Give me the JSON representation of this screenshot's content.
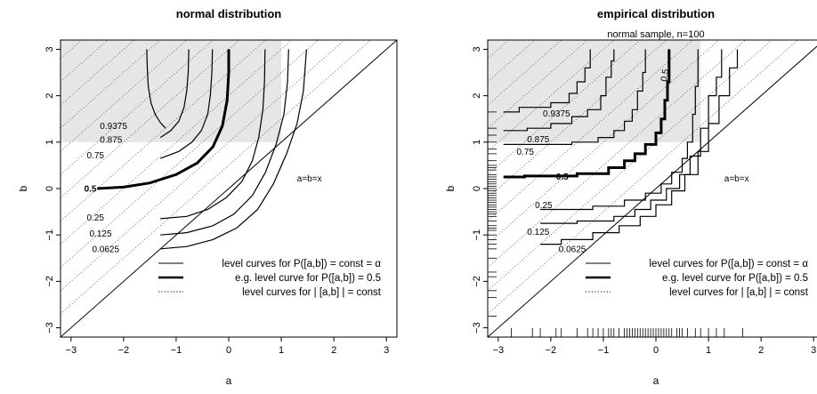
{
  "chart_data": [
    {
      "type": "line",
      "title": "normal distribution",
      "subtitle": "",
      "xlabel": "a",
      "ylabel": "b",
      "xlim": [
        -3.2,
        3.2
      ],
      "ylim": [
        -3.2,
        3.2
      ],
      "xticks": [
        -3,
        -2,
        -1,
        0,
        1,
        2,
        3
      ],
      "yticks": [
        -3,
        -2,
        -1,
        0,
        1,
        2,
        3
      ],
      "shaded_region": {
        "a": [
          -3.2,
          1
        ],
        "b": [
          1,
          3.2
        ]
      },
      "diagonal_label": "a=b=x",
      "level_curves": [
        {
          "label": "0.9375",
          "points": [
            [
              -1.2,
              1.3
            ],
            [
              -1.3,
              1.42
            ],
            [
              -1.4,
              1.6
            ],
            [
              -1.48,
              1.85
            ],
            [
              -1.53,
              2.2
            ],
            [
              -1.55,
              2.6
            ],
            [
              -1.56,
              3.0
            ]
          ]
        },
        {
          "label": "0.875",
          "points": [
            [
              -1.3,
              1.1
            ],
            [
              -1.1,
              1.25
            ],
            [
              -0.95,
              1.45
            ],
            [
              -0.85,
              1.75
            ],
            [
              -0.8,
              2.1
            ],
            [
              -0.77,
              2.5
            ],
            [
              -0.76,
              3.0
            ]
          ]
        },
        {
          "label": "0.75",
          "points": [
            [
              -1.3,
              0.65
            ],
            [
              -0.95,
              0.8
            ],
            [
              -0.7,
              1.0
            ],
            [
              -0.52,
              1.25
            ],
            [
              -0.4,
              1.6
            ],
            [
              -0.35,
              2.0
            ],
            [
              -0.32,
              2.5
            ],
            [
              -0.31,
              3.0
            ]
          ]
        },
        {
          "label": "0.5",
          "bold": true,
          "points": [
            [
              -2.5,
              0.0
            ],
            [
              -2.0,
              0.03
            ],
            [
              -1.5,
              0.12
            ],
            [
              -1.0,
              0.3
            ],
            [
              -0.6,
              0.55
            ],
            [
              -0.3,
              0.9
            ],
            [
              -0.12,
              1.35
            ],
            [
              -0.03,
              1.9
            ],
            [
              0.0,
              2.5
            ],
            [
              0.0,
              3.0
            ]
          ]
        },
        {
          "label": "0.25",
          "points": [
            [
              -1.3,
              -0.65
            ],
            [
              -0.8,
              -0.6
            ],
            [
              -0.4,
              -0.45
            ],
            [
              -0.05,
              -0.2
            ],
            [
              0.25,
              0.15
            ],
            [
              0.45,
              0.6
            ],
            [
              0.57,
              1.1
            ],
            [
              0.65,
              1.7
            ],
            [
              0.68,
              2.3
            ],
            [
              0.69,
              3.0
            ]
          ]
        },
        {
          "label": "0.125",
          "points": [
            [
              -1.3,
              -1.0
            ],
            [
              -0.8,
              -0.95
            ],
            [
              -0.3,
              -0.8
            ],
            [
              0.1,
              -0.55
            ],
            [
              0.45,
              -0.15
            ],
            [
              0.7,
              0.35
            ],
            [
              0.9,
              0.95
            ],
            [
              1.05,
              1.6
            ],
            [
              1.12,
              2.3
            ],
            [
              1.14,
              3.0
            ]
          ]
        },
        {
          "label": "0.0625",
          "points": [
            [
              -1.3,
              -1.3
            ],
            [
              -0.8,
              -1.25
            ],
            [
              -0.3,
              -1.1
            ],
            [
              0.15,
              -0.85
            ],
            [
              0.55,
              -0.45
            ],
            [
              0.85,
              0.1
            ],
            [
              1.1,
              0.75
            ],
            [
              1.3,
              1.4
            ],
            [
              1.42,
              2.1
            ],
            [
              1.48,
              3.0
            ]
          ]
        }
      ],
      "legend": {
        "placement": "bottom-right",
        "entries": [
          {
            "label": "level curves for P([a,b]) = const = α",
            "style": "thin"
          },
          {
            "label": "e.g. level curve for P([a,b]) = 0.5",
            "style": "bold"
          },
          {
            "label": "level curves for | [a,b] | = const",
            "style": "dotted"
          }
        ]
      }
    },
    {
      "type": "line",
      "title": "empirical distribution",
      "subtitle": "normal sample, n=100",
      "xlabel": "a",
      "ylabel": "b",
      "xlim": [
        -3.2,
        3.2
      ],
      "ylim": [
        -3.2,
        3.2
      ],
      "xticks": [
        -3,
        -2,
        -1,
        0,
        1,
        2,
        3
      ],
      "yticks": [
        -3,
        -2,
        -1,
        0,
        1,
        2,
        3
      ],
      "shaded_region": {
        "a": [
          -3.2,
          0.85
        ],
        "b": [
          1,
          3.2
        ]
      },
      "diagonal_label": "a=b=x",
      "rug_x": [
        -2.75,
        -2.35,
        -2.2,
        -1.9,
        -1.8,
        -1.5,
        -1.3,
        -1.2,
        -1.1,
        -1.0,
        -0.9,
        -0.85,
        -0.8,
        -0.7,
        -0.6,
        -0.55,
        -0.5,
        -0.45,
        -0.4,
        -0.35,
        -0.3,
        -0.25,
        -0.2,
        -0.15,
        -0.1,
        -0.05,
        0.0,
        0.05,
        0.1,
        0.15,
        0.2,
        0.25,
        0.3,
        0.4,
        0.45,
        0.5,
        0.6,
        0.75,
        0.85,
        1.0,
        1.15,
        1.3,
        1.65
      ],
      "rug_y": [
        -2.75,
        -2.35,
        -2.2,
        -1.9,
        -1.8,
        -1.5,
        -1.3,
        -1.2,
        -1.1,
        -1.0,
        -0.9,
        -0.85,
        -0.8,
        -0.7,
        -0.6,
        -0.55,
        -0.5,
        -0.45,
        -0.4,
        -0.35,
        -0.3,
        -0.25,
        -0.2,
        -0.15,
        -0.1,
        -0.05,
        0.0,
        0.05,
        0.1,
        0.15,
        0.2,
        0.25,
        0.3,
        0.4,
        0.45,
        0.5,
        0.6,
        0.75,
        0.85,
        1.0,
        1.15,
        1.3,
        1.65
      ],
      "level_curves": [
        {
          "label": "0.9375",
          "points": [
            [
              -2.9,
              1.65
            ],
            [
              -2.6,
              1.65
            ],
            [
              -2.6,
              1.75
            ],
            [
              -2.0,
              1.75
            ],
            [
              -2.0,
              1.85
            ],
            [
              -1.65,
              1.85
            ],
            [
              -1.65,
              2.05
            ],
            [
              -1.5,
              2.05
            ],
            [
              -1.5,
              2.3
            ],
            [
              -1.35,
              2.3
            ],
            [
              -1.35,
              2.6
            ],
            [
              -1.25,
              2.6
            ],
            [
              -1.25,
              3.0
            ]
          ]
        },
        {
          "label": "0.875",
          "points": [
            [
              -2.9,
              1.25
            ],
            [
              -2.45,
              1.25
            ],
            [
              -2.45,
              1.3
            ],
            [
              -2.0,
              1.3
            ],
            [
              -2.0,
              1.4
            ],
            [
              -1.6,
              1.4
            ],
            [
              -1.6,
              1.55
            ],
            [
              -1.3,
              1.55
            ],
            [
              -1.3,
              1.7
            ],
            [
              -1.05,
              1.7
            ],
            [
              -1.05,
              2.0
            ],
            [
              -0.95,
              2.0
            ],
            [
              -0.95,
              2.4
            ],
            [
              -0.85,
              2.4
            ],
            [
              -0.85,
              2.75
            ],
            [
              -0.8,
              2.75
            ],
            [
              -0.8,
              3.0
            ]
          ]
        },
        {
          "label": "0.75",
          "points": [
            [
              -2.9,
              0.95
            ],
            [
              -1.6,
              0.95
            ],
            [
              -1.6,
              1.0
            ],
            [
              -1.1,
              1.0
            ],
            [
              -1.1,
              1.1
            ],
            [
              -0.8,
              1.1
            ],
            [
              -0.8,
              1.25
            ],
            [
              -0.6,
              1.25
            ],
            [
              -0.6,
              1.45
            ],
            [
              -0.45,
              1.45
            ],
            [
              -0.45,
              1.7
            ],
            [
              -0.35,
              1.7
            ],
            [
              -0.35,
              2.1
            ],
            [
              -0.25,
              2.1
            ],
            [
              -0.25,
              2.5
            ],
            [
              -0.2,
              2.5
            ],
            [
              -0.2,
              3.0
            ]
          ]
        },
        {
          "label": "0.5",
          "bold": true,
          "points": [
            [
              -2.9,
              0.25
            ],
            [
              -2.5,
              0.25
            ],
            [
              -2.5,
              0.27
            ],
            [
              -1.5,
              0.27
            ],
            [
              -1.5,
              0.32
            ],
            [
              -0.9,
              0.32
            ],
            [
              -0.9,
              0.45
            ],
            [
              -0.6,
              0.45
            ],
            [
              -0.6,
              0.6
            ],
            [
              -0.4,
              0.6
            ],
            [
              -0.4,
              0.75
            ],
            [
              -0.2,
              0.75
            ],
            [
              -0.2,
              0.95
            ],
            [
              0.0,
              0.95
            ],
            [
              0.0,
              1.2
            ],
            [
              0.1,
              1.2
            ],
            [
              0.1,
              1.5
            ],
            [
              0.17,
              1.5
            ],
            [
              0.17,
              1.9
            ],
            [
              0.22,
              1.9
            ],
            [
              0.22,
              2.3
            ],
            [
              0.25,
              2.3
            ],
            [
              0.25,
              3.0
            ]
          ]
        },
        {
          "label": "0.25",
          "points": [
            [
              -2.2,
              -0.45
            ],
            [
              -1.2,
              -0.45
            ],
            [
              -1.2,
              -0.38
            ],
            [
              -0.6,
              -0.38
            ],
            [
              -0.6,
              -0.25
            ],
            [
              -0.2,
              -0.25
            ],
            [
              -0.2,
              -0.1
            ],
            [
              0.1,
              -0.1
            ],
            [
              0.1,
              0.1
            ],
            [
              0.3,
              0.1
            ],
            [
              0.3,
              0.35
            ],
            [
              0.5,
              0.35
            ],
            [
              0.5,
              0.65
            ],
            [
              0.6,
              0.65
            ],
            [
              0.6,
              1.0
            ],
            [
              0.7,
              1.0
            ],
            [
              0.7,
              1.6
            ],
            [
              0.75,
              1.6
            ],
            [
              0.75,
              2.2
            ],
            [
              0.8,
              2.2
            ],
            [
              0.8,
              3.0
            ]
          ]
        },
        {
          "label": "0.125",
          "points": [
            [
              -2.2,
              -0.75
            ],
            [
              -1.5,
              -0.75
            ],
            [
              -1.5,
              -0.7
            ],
            [
              -0.8,
              -0.7
            ],
            [
              -0.8,
              -0.6
            ],
            [
              -0.4,
              -0.6
            ],
            [
              -0.4,
              -0.45
            ],
            [
              -0.1,
              -0.45
            ],
            [
              -0.1,
              -0.25
            ],
            [
              0.2,
              -0.25
            ],
            [
              0.2,
              0.0
            ],
            [
              0.45,
              0.0
            ],
            [
              0.45,
              0.3
            ],
            [
              0.65,
              0.3
            ],
            [
              0.65,
              0.7
            ],
            [
              0.85,
              0.7
            ],
            [
              0.85,
              1.3
            ],
            [
              1.0,
              1.3
            ],
            [
              1.0,
              2.0
            ],
            [
              1.15,
              2.0
            ],
            [
              1.15,
              2.4
            ],
            [
              1.25,
              2.4
            ],
            [
              1.25,
              3.0
            ]
          ]
        },
        {
          "label": "0.0625",
          "points": [
            [
              -2.2,
              -1.2
            ],
            [
              -1.8,
              -1.2
            ],
            [
              -1.8,
              -1.1
            ],
            [
              -1.2,
              -1.1
            ],
            [
              -1.2,
              -0.95
            ],
            [
              -0.7,
              -0.95
            ],
            [
              -0.7,
              -0.8
            ],
            [
              -0.3,
              -0.8
            ],
            [
              -0.3,
              -0.6
            ],
            [
              0.0,
              -0.6
            ],
            [
              0.0,
              -0.35
            ],
            [
              0.3,
              -0.35
            ],
            [
              0.3,
              -0.05
            ],
            [
              0.55,
              -0.05
            ],
            [
              0.55,
              0.3
            ],
            [
              0.8,
              0.3
            ],
            [
              0.8,
              0.8
            ],
            [
              1.0,
              0.8
            ],
            [
              1.0,
              1.4
            ],
            [
              1.2,
              1.4
            ],
            [
              1.2,
              2.0
            ],
            [
              1.4,
              2.0
            ],
            [
              1.4,
              2.6
            ],
            [
              1.55,
              2.6
            ],
            [
              1.55,
              3.0
            ]
          ]
        }
      ],
      "legend": {
        "placement": "bottom-right",
        "entries": [
          {
            "label": "level curves for P([a,b]) = const = α",
            "style": "thin"
          },
          {
            "label": "e.g. level curve for P([a,b]) = 0.5",
            "style": "bold"
          },
          {
            "label": "level curves for | [a,b] | = const",
            "style": "dotted"
          }
        ]
      }
    }
  ]
}
